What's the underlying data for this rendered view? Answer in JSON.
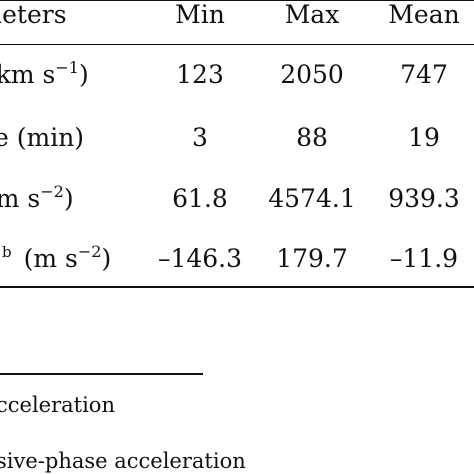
{
  "table": {
    "header": {
      "param": "neters",
      "min": "Min",
      "max": "Max",
      "mean": "Mean"
    },
    "rows": [
      {
        "param_prefix": "(km s",
        "param_sup": "−1",
        "param_suffix": ")",
        "min": "123",
        "max": "2050",
        "mean": "747"
      },
      {
        "param_text": "le (min)",
        "min": "3",
        "max": "88",
        "mean": "19"
      },
      {
        "param_prefix": " (m s",
        "param_sup": "−2",
        "param_suffix": ")",
        "min": "61.8",
        "max": "4574.1",
        "mean": "939.3"
      },
      {
        "param_mark": "b",
        "param_prefix": "(m s",
        "param_sup": "−2",
        "param_suffix": ")",
        "min": "–146.3",
        "max": "179.7",
        "mean": "–11.9"
      }
    ]
  },
  "footnotes": [
    "cceleration",
    "sive-phase acceleration"
  ]
}
